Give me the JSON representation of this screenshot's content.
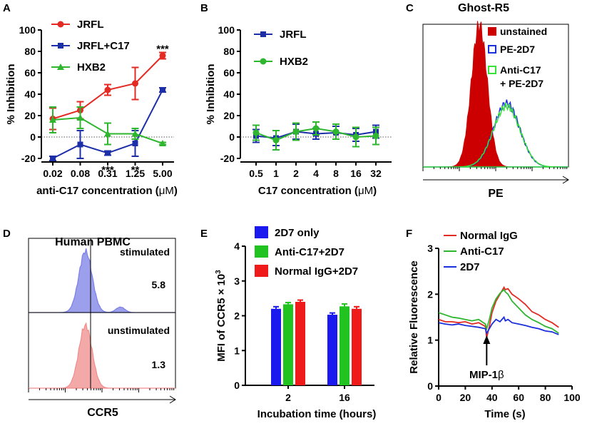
{
  "chart_data": [
    {
      "panel": "A",
      "type": "line",
      "ylabel": "% Inhibition",
      "xlabel_main": "anti-C17 concentration (",
      "xlabel_unit": "μM",
      "xlabel_end": ")",
      "categories": [
        "0.02",
        "0.08",
        "0.31",
        "1.25",
        "5.00"
      ],
      "ylim": [
        -20,
        100
      ],
      "yticks": [
        "-20",
        "0",
        "20",
        "40",
        "60",
        "80",
        "100"
      ],
      "colors": {
        "JRFL": "#e32b24",
        "JRFL+C17": "#1c2fa8",
        "HXB2": "#2fb62f"
      },
      "series": [
        {
          "name": "JRFL",
          "values": [
            17,
            25,
            44,
            50,
            76
          ],
          "errors": [
            10,
            8,
            5,
            15,
            3
          ]
        },
        {
          "name": "JRFL+C17",
          "values": [
            -20,
            -7,
            -15,
            -6,
            44
          ],
          "errors": [
            2,
            13,
            2,
            12,
            2
          ]
        },
        {
          "name": "HXB2",
          "values": [
            16,
            18,
            3,
            3,
            -6
          ],
          "errors": [
            12,
            10,
            10,
            5,
            1
          ]
        }
      ],
      "annotations": [
        {
          "text": "***",
          "category": "5.00",
          "value": 83
        },
        {
          "text": "***",
          "category": "0.31",
          "value": -30
        },
        {
          "text": "**",
          "category": "1.25",
          "value": -30
        }
      ]
    },
    {
      "panel": "B",
      "type": "line",
      "ylabel": "% Inhibition",
      "xlabel_main": "C17 concentration (",
      "xlabel_unit": "μM",
      "xlabel_end": ")",
      "categories": [
        "0.5",
        "1",
        "2",
        "4",
        "8",
        "16",
        "32"
      ],
      "ylim": [
        -20,
        100
      ],
      "yticks": [
        "-20",
        "0",
        "20",
        "40",
        "60",
        "80",
        "100"
      ],
      "colors": {
        "JRFL": "#1c2fa8",
        "HXB2": "#2fb62f"
      },
      "series": [
        {
          "name": "JRFL",
          "values": [
            1,
            -1,
            5,
            3,
            4,
            2,
            5
          ],
          "errors": [
            6,
            7,
            7,
            5,
            6,
            6,
            6
          ]
        },
        {
          "name": "HXB2",
          "values": [
            4,
            -3,
            5,
            8,
            5,
            0,
            1
          ],
          "errors": [
            7,
            9,
            8,
            6,
            7,
            9,
            8
          ]
        }
      ]
    },
    {
      "panel": "C",
      "type": "area",
      "title": "Ghost-R5",
      "xlabel": "PE",
      "colors": {
        "unstained": "#cc0000",
        "PE-2D7": "#1c2fdc",
        "Anti-C17 + PE-2D7": "#39e139"
      },
      "legend": [
        {
          "name": "unstained",
          "style": "filled"
        },
        {
          "name": "PE-2D7",
          "style": "open"
        },
        {
          "name": "Anti-C17",
          "name2": "+ PE-2D7",
          "style": "open"
        }
      ],
      "series": [
        {
          "name": "unstained",
          "peak_log": 1.55,
          "width": 0.22,
          "height": 1.0
        },
        {
          "name": "PE-2D7",
          "peak_log": 2.3,
          "width": 0.36,
          "height": 0.45
        },
        {
          "name": "Anti-C17 + PE-2D7",
          "peak_log": 2.3,
          "width": 0.37,
          "height": 0.43
        }
      ]
    },
    {
      "panel": "D",
      "type": "area",
      "title": "Human PBMC",
      "xlabel": "CCR5",
      "colors": {
        "stimulated": "#7b7fe6",
        "unstimulated": "#f08c8c"
      },
      "histograms": [
        {
          "label": "stimulated",
          "value": "5.8",
          "peak_log": 1.55,
          "width": 0.18,
          "secondary_peak_log": 2.5
        },
        {
          "label": "unstimulated",
          "value": "1.3",
          "peak_log": 1.55,
          "width": 0.18
        }
      ]
    },
    {
      "panel": "E",
      "type": "bar",
      "ylabel": "MFI of CCR5 × 10",
      "ylabel_exp": "3",
      "xlabel": "Incubation time (hours)",
      "categories": [
        "2",
        "16"
      ],
      "ylim": [
        0,
        4
      ],
      "yticks": [
        "0",
        "1",
        "2",
        "3",
        "4"
      ],
      "colors": {
        "2D7 only": "#1a1aef",
        "Anti-C17+2D7": "#21c321",
        "Normal IgG+2D7": "#ef1a1a"
      },
      "series": [
        {
          "name": "2D7 only",
          "values": [
            2.2,
            2.03
          ],
          "errors": [
            0.06,
            0.05
          ]
        },
        {
          "name": "Anti-C17+2D7",
          "values": [
            2.33,
            2.27
          ],
          "errors": [
            0.05,
            0.07
          ]
        },
        {
          "name": "Normal IgG+2D7",
          "values": [
            2.4,
            2.2
          ],
          "errors": [
            0.05,
            0.06
          ]
        }
      ]
    },
    {
      "panel": "F",
      "type": "line",
      "ylabel": "Relative Fluorescence",
      "xlabel": "Time (s)",
      "xlim": [
        0,
        100
      ],
      "ylim": [
        0,
        3
      ],
      "xticks": [
        "0",
        "20",
        "40",
        "60",
        "80",
        "100"
      ],
      "yticks": [
        "0",
        "1",
        "2",
        "3"
      ],
      "colors": {
        "Normal IgG": "#e32b24",
        "Anti-C17": "#2fb62f",
        "2D7": "#1c2fdc"
      },
      "series": [
        {
          "name": "Normal IgG",
          "x": [
            0,
            5,
            10,
            15,
            20,
            25,
            30,
            35,
            36,
            38,
            40,
            43,
            46,
            49,
            50,
            52,
            55,
            60,
            65,
            70,
            75,
            80,
            85,
            90
          ],
          "y": [
            1.45,
            1.4,
            1.4,
            1.38,
            1.4,
            1.35,
            1.38,
            1.3,
            1.05,
            1.3,
            1.6,
            1.85,
            2.0,
            2.15,
            2.1,
            2.12,
            2.0,
            1.9,
            1.78,
            1.62,
            1.55,
            1.45,
            1.38,
            1.28
          ]
        },
        {
          "name": "Anti-C17",
          "x": [
            0,
            5,
            10,
            15,
            20,
            25,
            30,
            35,
            36,
            38,
            40,
            43,
            46,
            49,
            50,
            52,
            55,
            60,
            65,
            70,
            75,
            80,
            85,
            90
          ],
          "y": [
            1.6,
            1.55,
            1.5,
            1.48,
            1.45,
            1.42,
            1.45,
            1.35,
            1.25,
            1.45,
            1.7,
            1.9,
            2.02,
            2.1,
            2.05,
            2.0,
            1.85,
            1.7,
            1.55,
            1.45,
            1.38,
            1.3,
            1.25,
            1.15
          ]
        },
        {
          "name": "2D7",
          "x": [
            0,
            5,
            10,
            15,
            20,
            25,
            30,
            35,
            36,
            38,
            40,
            43,
            46,
            49,
            50,
            52,
            55,
            60,
            65,
            70,
            75,
            80,
            85,
            90
          ],
          "y": [
            1.38,
            1.35,
            1.33,
            1.35,
            1.32,
            1.3,
            1.28,
            1.25,
            1.15,
            1.25,
            1.35,
            1.45,
            1.4,
            1.5,
            1.42,
            1.45,
            1.38,
            1.35,
            1.32,
            1.28,
            1.25,
            1.2,
            1.18,
            1.12
          ]
        }
      ],
      "annotation": {
        "text": "MIP-1",
        "text_greek": "β",
        "x": 36
      }
    }
  ],
  "panel_letters": [
    "A",
    "B",
    "C",
    "D",
    "E",
    "F"
  ]
}
